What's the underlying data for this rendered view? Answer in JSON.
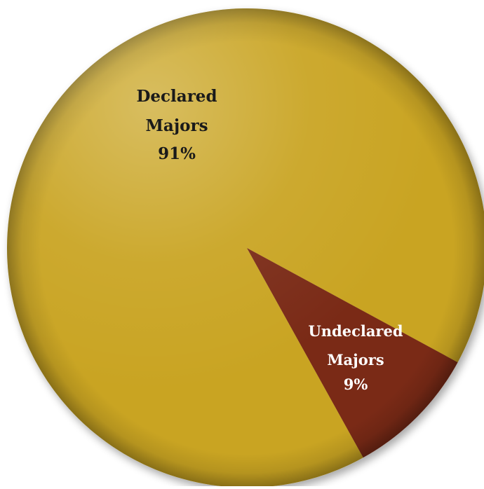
{
  "chart_data": {
    "type": "pie",
    "title": "",
    "slices": [
      {
        "label_line1": "Declared",
        "label_line2": "Majors",
        "value": 91,
        "value_text": "91%",
        "color": "#C9A422",
        "label_color": "#1a1a1a"
      },
      {
        "label_line1": "Undeclared",
        "label_line2": "Majors",
        "value": 9,
        "value_text": "9%",
        "color": "#7A2A14",
        "label_color": "#ffffff"
      }
    ]
  }
}
